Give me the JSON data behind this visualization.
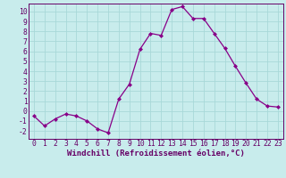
{
  "x": [
    0,
    1,
    2,
    3,
    4,
    5,
    6,
    7,
    8,
    9,
    10,
    11,
    12,
    13,
    14,
    15,
    16,
    17,
    18,
    19,
    20,
    21,
    22,
    23
  ],
  "y": [
    -0.5,
    -1.5,
    -0.8,
    -0.3,
    -0.5,
    -1.0,
    -1.8,
    -2.2,
    1.2,
    2.7,
    6.2,
    7.8,
    7.6,
    10.2,
    10.5,
    9.3,
    9.3,
    7.8,
    6.3,
    4.5,
    2.8,
    1.2,
    0.5,
    0.4
  ],
  "line_color": "#880088",
  "marker": "D",
  "marker_size": 2.0,
  "bg_color": "#c8ecec",
  "grid_color": "#a8d8d8",
  "xlabel": "Windchill (Refroidissement éolien,°C)",
  "xlim": [
    -0.5,
    23.5
  ],
  "ylim": [
    -2.8,
    10.8
  ],
  "yticks": [
    -2,
    -1,
    0,
    1,
    2,
    3,
    4,
    5,
    6,
    7,
    8,
    9,
    10
  ],
  "xticks": [
    0,
    1,
    2,
    3,
    4,
    5,
    6,
    7,
    8,
    9,
    10,
    11,
    12,
    13,
    14,
    15,
    16,
    17,
    18,
    19,
    20,
    21,
    22,
    23
  ],
  "xlabel_fontsize": 6.5,
  "tick_fontsize": 5.8,
  "axis_color": "#660066",
  "spine_color": "#660066",
  "grid_linewidth": 0.6
}
